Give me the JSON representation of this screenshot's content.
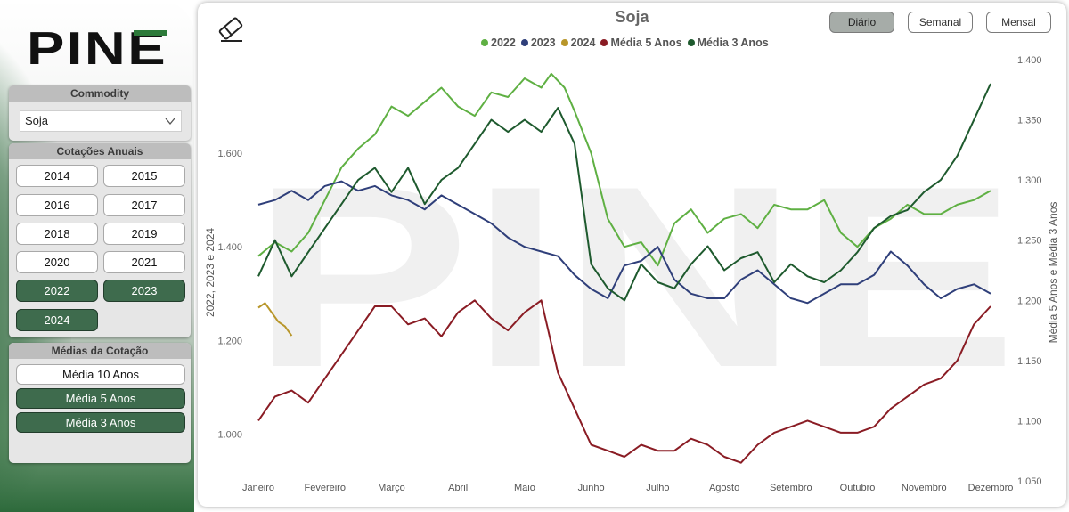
{
  "sidebar": {
    "logo_text": "PINE",
    "commodity": {
      "header": "Commodity",
      "selected": "Soja"
    },
    "cotacoes": {
      "header": "Cotações Anuais",
      "years": [
        {
          "label": "2014",
          "selected": false
        },
        {
          "label": "2015",
          "selected": false
        },
        {
          "label": "2016",
          "selected": false
        },
        {
          "label": "2017",
          "selected": false
        },
        {
          "label": "2018",
          "selected": false
        },
        {
          "label": "2019",
          "selected": false
        },
        {
          "label": "2020",
          "selected": false
        },
        {
          "label": "2021",
          "selected": false
        },
        {
          "label": "2022",
          "selected": true
        },
        {
          "label": "2023",
          "selected": true
        },
        {
          "label": "2024",
          "selected": true
        }
      ]
    },
    "medias": {
      "header": "Médias da Cotação",
      "items": [
        {
          "label": "Média 10 Anos",
          "selected": false
        },
        {
          "label": "Média 5 Anos",
          "selected": true
        },
        {
          "label": "Média 3 Anos",
          "selected": true
        }
      ]
    }
  },
  "toolbar": {
    "eraser_icon": "eraser-icon",
    "periods": [
      {
        "label": "Diário",
        "selected": true
      },
      {
        "label": "Semanal",
        "selected": false
      },
      {
        "label": "Mensal",
        "selected": false
      }
    ]
  },
  "colors": {
    "s2022": "#5fb043",
    "s2023": "#2f3f7a",
    "s2024": "#b8962a",
    "m5": "#8a1c24",
    "m3": "#1e5a2e",
    "active_button": "#3e6b4d"
  },
  "chart_data": {
    "type": "line",
    "title": "Soja",
    "watermark": "PINE",
    "xlabel": "",
    "ylabel": "2022, 2023 e 2024",
    "y2label": "Média 5 Anos e Média 3 Anos",
    "x_categories": [
      "Janeiro",
      "Fevereiro",
      "Março",
      "Abril",
      "Maio",
      "Junho",
      "Julho",
      "Agosto",
      "Setembro",
      "Outubro",
      "Novembro",
      "Dezembro"
    ],
    "ylim": [
      900,
      1800
    ],
    "y_ticks": [
      1000,
      1200,
      1400,
      1600
    ],
    "y_tick_labels": [
      "1.000",
      "1.200",
      "1.400",
      "1.600"
    ],
    "y2lim": [
      1050,
      1400
    ],
    "y2_ticks": [
      1050,
      1100,
      1150,
      1200,
      1250,
      1300,
      1350,
      1400
    ],
    "y2_tick_labels": [
      "1.050",
      "1.100",
      "1.150",
      "1.200",
      "1.250",
      "1.300",
      "1.350",
      "1.400"
    ],
    "legend_position": "top-center",
    "grid": false,
    "series": [
      {
        "name": "2022",
        "axis": "left",
        "color_key": "s2022",
        "x": [
          0,
          0.25,
          0.5,
          0.75,
          1,
          1.25,
          1.5,
          1.75,
          2,
          2.25,
          2.5,
          2.75,
          3,
          3.25,
          3.5,
          3.75,
          4,
          4.25,
          4.4,
          4.6,
          4.75,
          5,
          5.25,
          5.5,
          5.75,
          6,
          6.25,
          6.5,
          6.75,
          7,
          7.25,
          7.5,
          7.75,
          8,
          8.25,
          8.5,
          8.75,
          9,
          9.25,
          9.5,
          9.75,
          10,
          10.25,
          10.5,
          10.75,
          11
        ],
        "y": [
          1380,
          1410,
          1390,
          1430,
          1500,
          1570,
          1610,
          1640,
          1700,
          1680,
          1710,
          1740,
          1700,
          1680,
          1730,
          1720,
          1760,
          1740,
          1770,
          1740,
          1690,
          1600,
          1460,
          1400,
          1410,
          1360,
          1450,
          1480,
          1430,
          1460,
          1470,
          1440,
          1490,
          1480,
          1480,
          1500,
          1430,
          1400,
          1440,
          1460,
          1490,
          1470,
          1470,
          1490,
          1500,
          1520
        ]
      },
      {
        "name": "2023",
        "axis": "left",
        "color_key": "s2023",
        "x": [
          0,
          0.25,
          0.5,
          0.75,
          1,
          1.25,
          1.5,
          1.75,
          2,
          2.25,
          2.5,
          2.75,
          3,
          3.25,
          3.5,
          3.75,
          4,
          4.25,
          4.5,
          4.75,
          5,
          5.25,
          5.5,
          5.75,
          6,
          6.25,
          6.5,
          6.75,
          7,
          7.25,
          7.5,
          7.75,
          8,
          8.25,
          8.5,
          8.75,
          9,
          9.25,
          9.5,
          9.75,
          10,
          10.25,
          10.5,
          10.75,
          11
        ],
        "y": [
          1490,
          1500,
          1520,
          1500,
          1530,
          1540,
          1520,
          1530,
          1510,
          1500,
          1480,
          1510,
          1490,
          1470,
          1450,
          1420,
          1400,
          1390,
          1380,
          1340,
          1310,
          1290,
          1360,
          1370,
          1400,
          1330,
          1300,
          1290,
          1290,
          1330,
          1350,
          1320,
          1290,
          1280,
          1300,
          1320,
          1320,
          1340,
          1390,
          1360,
          1320,
          1290,
          1310,
          1320,
          1300
        ]
      },
      {
        "name": "2024",
        "axis": "left",
        "color_key": "s2024",
        "x": [
          0,
          0.1,
          0.2,
          0.3,
          0.4,
          0.5
        ],
        "y": [
          1270,
          1280,
          1260,
          1240,
          1230,
          1210
        ]
      },
      {
        "name": "Média 5 Anos",
        "axis": "right",
        "color_key": "m5",
        "x": [
          0,
          0.25,
          0.5,
          0.75,
          1,
          1.25,
          1.5,
          1.75,
          2,
          2.25,
          2.5,
          2.75,
          3,
          3.25,
          3.5,
          3.75,
          4,
          4.25,
          4.5,
          4.75,
          5,
          5.25,
          5.5,
          5.75,
          6,
          6.25,
          6.5,
          6.75,
          7,
          7.25,
          7.5,
          7.75,
          8,
          8.25,
          8.5,
          8.75,
          9,
          9.25,
          9.5,
          9.75,
          10,
          10.25,
          10.5,
          10.75,
          11
        ],
        "y": [
          1100,
          1120,
          1125,
          1115,
          1135,
          1155,
          1175,
          1195,
          1195,
          1180,
          1185,
          1170,
          1190,
          1200,
          1185,
          1175,
          1190,
          1200,
          1140,
          1110,
          1080,
          1075,
          1070,
          1080,
          1075,
          1075,
          1085,
          1080,
          1070,
          1065,
          1080,
          1090,
          1095,
          1100,
          1095,
          1090,
          1090,
          1095,
          1110,
          1120,
          1130,
          1135,
          1150,
          1180,
          1195
        ]
      },
      {
        "name": "Média 3 Anos",
        "axis": "right",
        "color_key": "m3",
        "x": [
          0,
          0.25,
          0.5,
          0.75,
          1,
          1.25,
          1.5,
          1.75,
          2,
          2.25,
          2.5,
          2.75,
          3,
          3.25,
          3.5,
          3.75,
          4,
          4.25,
          4.5,
          4.75,
          5,
          5.25,
          5.5,
          5.75,
          6,
          6.25,
          6.5,
          6.75,
          7,
          7.25,
          7.5,
          7.75,
          8,
          8.25,
          8.5,
          8.75,
          9,
          9.25,
          9.5,
          9.75,
          10,
          10.25,
          10.5,
          10.75,
          11
        ],
        "y": [
          1220,
          1250,
          1220,
          1240,
          1260,
          1280,
          1300,
          1310,
          1290,
          1310,
          1280,
          1300,
          1310,
          1330,
          1350,
          1340,
          1350,
          1340,
          1360,
          1330,
          1230,
          1210,
          1200,
          1230,
          1215,
          1210,
          1230,
          1245,
          1225,
          1235,
          1240,
          1215,
          1230,
          1220,
          1215,
          1225,
          1240,
          1260,
          1270,
          1275,
          1290,
          1300,
          1320,
          1350,
          1380
        ]
      }
    ]
  }
}
